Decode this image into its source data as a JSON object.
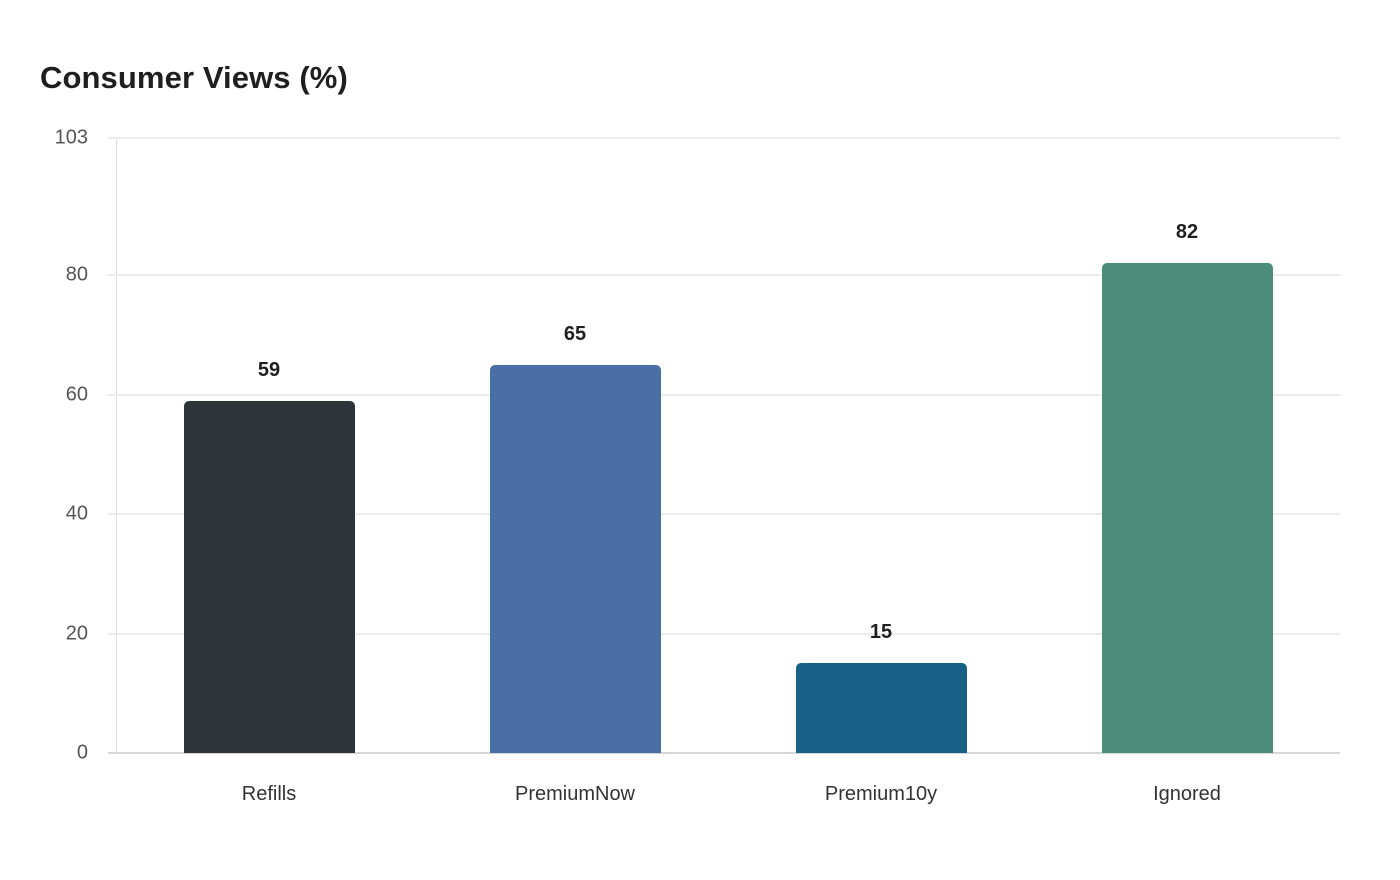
{
  "title": "Consumer Views (%)",
  "chart_data": {
    "type": "bar",
    "title": "Consumer Views (%)",
    "xlabel": "",
    "ylabel": "",
    "categories": [
      "Refills",
      "PremiumNow",
      "Premium10y",
      "Ignored"
    ],
    "values": [
      59,
      65,
      15,
      82
    ],
    "colors": [
      "#2e3538",
      "#4a6fa5",
      "#186086",
      "#4e8c7a"
    ],
    "ylim": [
      0,
      103
    ],
    "yticks": [
      0,
      20,
      40,
      60,
      80,
      103
    ],
    "grid": true,
    "legend": null,
    "data_labels": [
      "59",
      "65",
      "15",
      "82"
    ]
  },
  "yaxis": {
    "ticks": [
      "0",
      "20",
      "40",
      "60",
      "80",
      "103"
    ]
  }
}
